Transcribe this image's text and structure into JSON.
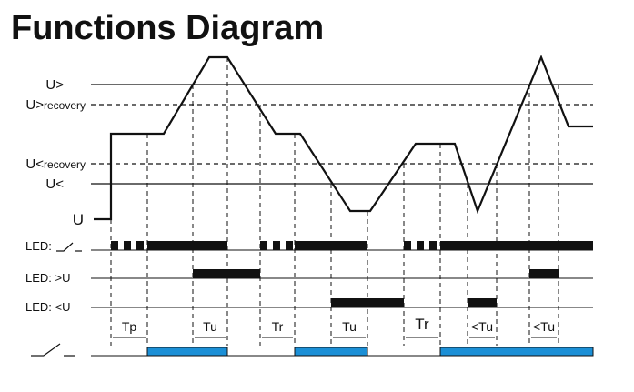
{
  "title": "Functions Diagram",
  "levels": [
    {
      "label": "U>"
    },
    {
      "label": "U>",
      "sub": "recovery"
    },
    {
      "label": "U<",
      "sub": "recovery"
    },
    {
      "label": "U<"
    },
    {
      "label": "U"
    }
  ],
  "leds": [
    {
      "label": "LED:"
    },
    {
      "label": "LED: >U"
    },
    {
      "label": "LED: <U"
    }
  ],
  "intervals": [
    "Tp",
    "Tu",
    "Tr",
    "Tu",
    "Tr",
    "<Tu",
    "<Tu"
  ]
}
